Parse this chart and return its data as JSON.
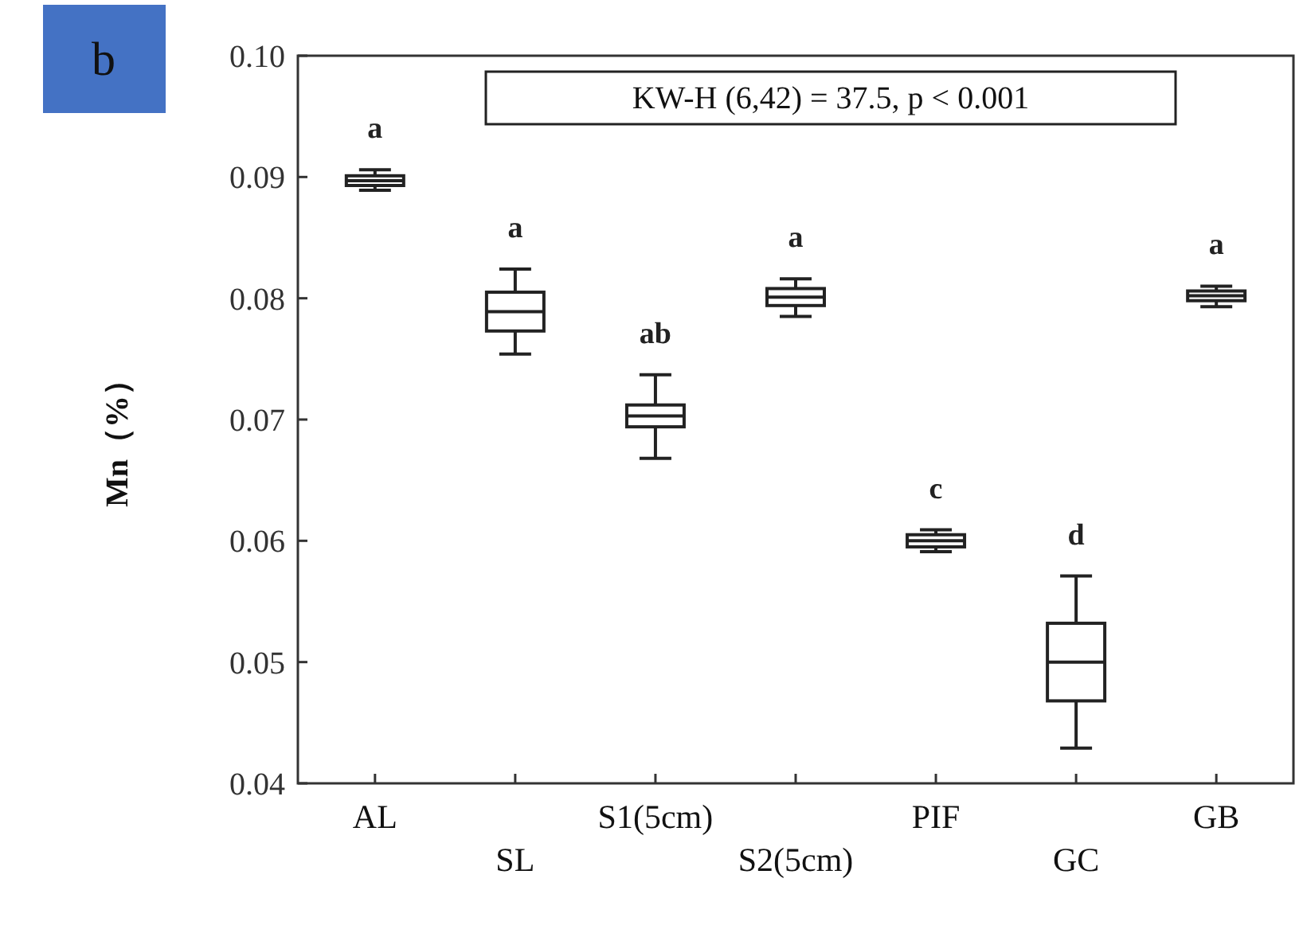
{
  "chart_data": {
    "type": "box",
    "ylabel": "Mn（%）",
    "categories": [
      "AL",
      "SL",
      "S1(5cm)",
      "S2(5cm)",
      "PIF",
      "GC",
      "GB"
    ],
    "boxes": [
      {
        "low": 0.0889,
        "q1": 0.0893,
        "median": 0.0897,
        "q3": 0.0901,
        "high": 0.0906
      },
      {
        "low": 0.0754,
        "q1": 0.0773,
        "median": 0.0789,
        "q3": 0.0805,
        "high": 0.0824
      },
      {
        "low": 0.0668,
        "q1": 0.0694,
        "median": 0.0703,
        "q3": 0.0712,
        "high": 0.0737
      },
      {
        "low": 0.0785,
        "q1": 0.0794,
        "median": 0.0801,
        "q3": 0.0808,
        "high": 0.0816
      },
      {
        "low": 0.0591,
        "q1": 0.0595,
        "median": 0.06,
        "q3": 0.0605,
        "high": 0.0609
      },
      {
        "low": 0.0429,
        "q1": 0.0468,
        "median": 0.05,
        "q3": 0.0532,
        "high": 0.0571
      },
      {
        "low": 0.0793,
        "q1": 0.0798,
        "median": 0.0802,
        "q3": 0.0806,
        "high": 0.081
      }
    ],
    "ylim": [
      0.04,
      0.1
    ],
    "yticks": [
      {
        "value": 0.04,
        "label": "0.04"
      },
      {
        "value": 0.05,
        "label": "0.05"
      },
      {
        "value": 0.06,
        "label": "0.06"
      },
      {
        "value": 0.07,
        "label": "0.07"
      },
      {
        "value": 0.08,
        "label": "0.08"
      },
      {
        "value": 0.09,
        "label": "0.09"
      },
      {
        "value": 0.1,
        "label": "0.10"
      }
    ],
    "grid": false,
    "annotations": [
      "KW-H (6,42) = 37.5, p < 0.001",
      "b",
      "a",
      "a",
      "ab",
      "a",
      "c",
      "d",
      "a"
    ]
  }
}
